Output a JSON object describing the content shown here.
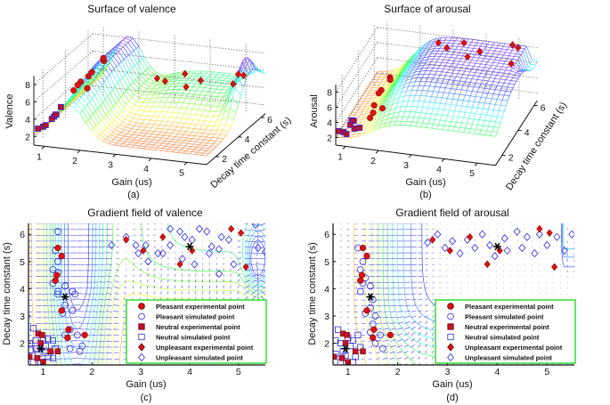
{
  "chart_data": [
    {
      "id": "a",
      "type": "surface3d",
      "title": "Surface of valence",
      "caption": "(a)",
      "xlabel": "Gain (us)",
      "ylabel": "Decay time constant (s)",
      "zlabel": "Valence",
      "xticks": [
        "1",
        "2",
        "3",
        "4",
        "5"
      ],
      "yticks": [
        "2",
        "4",
        "6"
      ],
      "zticks": [
        "2",
        "4",
        "6",
        "8"
      ],
      "xlim": [
        0.7,
        5.55
      ],
      "ylim": [
        1.2,
        6.4
      ],
      "zlim": [
        1,
        9
      ]
    },
    {
      "id": "b",
      "type": "surface3d",
      "title": "Surface of arousal",
      "caption": "(b)",
      "xlabel": "Gain (us)",
      "ylabel": "Decay time constant (s)",
      "zlabel": "Arousal",
      "xticks": [
        "1",
        "2",
        "3",
        "4",
        "5"
      ],
      "yticks": [
        "2",
        "4",
        "6"
      ],
      "zticks": [
        "2",
        "4",
        "6",
        "8"
      ],
      "xlim": [
        0.7,
        5.55
      ],
      "ylim": [
        1.2,
        6.4
      ],
      "zlim": [
        1,
        9
      ]
    },
    {
      "id": "c",
      "type": "scatter",
      "title": "Gradient field of valence",
      "caption": "(c)",
      "xlabel": "Gain (us)",
      "ylabel": "Decay time constant (s)",
      "xticks": [
        "1",
        "2",
        "3",
        "4",
        "5"
      ],
      "yticks": [
        "2",
        "3",
        "4",
        "5",
        "6"
      ],
      "xlim": [
        0.7,
        5.55
      ],
      "ylim": [
        1.2,
        6.4
      ],
      "legend_position": "bottom-right"
    },
    {
      "id": "d",
      "type": "scatter",
      "title": "Gradient field of arousal",
      "caption": "(d)",
      "xlabel": "Gain (us)",
      "ylabel": "Decay time constant (s)",
      "xticks": [
        "1",
        "2",
        "3",
        "4",
        "5"
      ],
      "yticks": [
        "2",
        "3",
        "4",
        "5",
        "6"
      ],
      "xlim": [
        0.7,
        5.55
      ],
      "ylim": [
        1.2,
        6.4
      ],
      "legend_position": "bottom-right"
    }
  ],
  "legend": [
    {
      "label": "Pleasant experimental point",
      "marker": "circle",
      "filled": true
    },
    {
      "label": "Pleasant simulated point",
      "marker": "circle",
      "filled": false
    },
    {
      "label": "Neutral experimental point",
      "marker": "square",
      "filled": true
    },
    {
      "label": "Neutral simulated point",
      "marker": "square",
      "filled": false
    },
    {
      "label": "Unpleasant experimental point",
      "marker": "diamond",
      "filled": true
    },
    {
      "label": "Unpleasant simulated point",
      "marker": "diamond",
      "filled": false
    }
  ],
  "points": {
    "pleasant_exp": [
      [
        1.3,
        5.5
      ],
      [
        1.38,
        5.2
      ],
      [
        1.28,
        4.5
      ],
      [
        1.25,
        4.3
      ],
      [
        1.38,
        3.2
      ],
      [
        1.52,
        2.5
      ],
      [
        1.5,
        2.2
      ],
      [
        1.85,
        2.3
      ]
    ],
    "neutral_exp": [
      [
        0.9,
        2.35
      ],
      [
        0.98,
        2.3
      ],
      [
        0.95,
        2.0
      ],
      [
        1.15,
        1.7
      ],
      [
        1.3,
        1.7
      ],
      [
        0.72,
        1.5
      ],
      [
        0.88,
        1.45
      ],
      [
        1.0,
        1.3
      ]
    ],
    "unpleasant_exp": [
      [
        2.7,
        5.8
      ],
      [
        3.05,
        5.4
      ],
      [
        3.45,
        5.9
      ],
      [
        3.8,
        4.9
      ],
      [
        4.05,
        5.4
      ],
      [
        4.85,
        6.2
      ],
      [
        5.05,
        6.05
      ],
      [
        5.15,
        4.8
      ]
    ],
    "centroids": [
      [
        0.95,
        1.8
      ],
      [
        1.45,
        3.7
      ],
      [
        4.0,
        5.55
      ]
    ],
    "pleasant_sim_c": [
      [
        1.3,
        6.1
      ],
      [
        1.25,
        5.4
      ],
      [
        1.3,
        5.0
      ],
      [
        1.2,
        4.7
      ],
      [
        1.3,
        4.6
      ],
      [
        1.45,
        4.1
      ],
      [
        1.3,
        3.9
      ],
      [
        1.3,
        3.8
      ],
      [
        1.6,
        3.9
      ],
      [
        1.65,
        3.8
      ],
      [
        1.45,
        3.4
      ],
      [
        1.4,
        3.1
      ],
      [
        1.6,
        3.2
      ],
      [
        1.55,
        2.5
      ],
      [
        1.45,
        2.3
      ],
      [
        1.7,
        2.3
      ],
      [
        1.55,
        1.8
      ],
      [
        1.8,
        1.9
      ],
      [
        1.75,
        1.7
      ],
      [
        1.2,
        4.2
      ]
    ],
    "neutral_sim_c": [
      [
        0.72,
        2.0
      ],
      [
        0.8,
        2.55
      ],
      [
        0.85,
        2.1
      ],
      [
        0.85,
        1.8
      ],
      [
        0.9,
        1.6
      ],
      [
        1.0,
        2.1
      ],
      [
        1.05,
        1.9
      ],
      [
        1.1,
        2.15
      ],
      [
        1.1,
        1.5
      ],
      [
        1.05,
        1.65
      ],
      [
        1.2,
        2.1
      ],
      [
        0.95,
        1.3
      ],
      [
        0.8,
        1.3
      ],
      [
        1.2,
        1.45
      ],
      [
        0.75,
        1.75
      ],
      [
        1.25,
        1.8
      ]
    ],
    "unpleasant_sim_c": [
      [
        2.4,
        5.6
      ],
      [
        2.7,
        5.9
      ],
      [
        2.9,
        5.6
      ],
      [
        2.95,
        5.3
      ],
      [
        3.1,
        5.6
      ],
      [
        3.15,
        5.0
      ],
      [
        3.35,
        5.3
      ],
      [
        3.45,
        5.3
      ],
      [
        3.6,
        5.6
      ],
      [
        3.6,
        6.2
      ],
      [
        3.8,
        6.1
      ],
      [
        3.85,
        5.1
      ],
      [
        3.9,
        5.9
      ],
      [
        4.05,
        5.8
      ],
      [
        4.1,
        4.9
      ],
      [
        4.2,
        6.2
      ],
      [
        4.35,
        6.1
      ],
      [
        4.4,
        5.3
      ],
      [
        4.45,
        5.55
      ],
      [
        4.6,
        5.45
      ],
      [
        4.6,
        4.55
      ],
      [
        4.65,
        5.9
      ],
      [
        4.8,
        5.8
      ],
      [
        4.9,
        4.9
      ],
      [
        5.35,
        6.35
      ],
      [
        5.4,
        5.5
      ],
      [
        5.55,
        5.35
      ]
    ],
    "pleasant_sim_d": [
      [
        1.2,
        5.5
      ],
      [
        1.3,
        5.0
      ],
      [
        1.25,
        4.7
      ],
      [
        1.35,
        4.4
      ],
      [
        1.3,
        4.2
      ],
      [
        1.45,
        4.1
      ],
      [
        1.25,
        3.9
      ],
      [
        1.5,
        3.6
      ],
      [
        1.45,
        3.3
      ],
      [
        1.35,
        3.1
      ],
      [
        1.55,
        3.0
      ],
      [
        1.5,
        2.7
      ],
      [
        1.45,
        2.4
      ],
      [
        1.65,
        2.3
      ],
      [
        1.55,
        2.0
      ],
      [
        1.7,
        1.8
      ]
    ],
    "neutral_sim_d": [
      [
        0.75,
        2.1
      ],
      [
        0.8,
        2.5
      ],
      [
        0.85,
        2.0
      ],
      [
        0.9,
        1.7
      ],
      [
        0.95,
        1.55
      ],
      [
        1.0,
        2.2
      ],
      [
        1.05,
        1.9
      ],
      [
        1.1,
        2.1
      ],
      [
        1.15,
        1.5
      ],
      [
        1.1,
        1.3
      ],
      [
        0.85,
        1.3
      ],
      [
        0.75,
        1.6
      ],
      [
        1.25,
        1.85
      ],
      [
        1.2,
        2.3
      ]
    ],
    "unpleasant_sim_d": [
      [
        2.6,
        5.7
      ],
      [
        2.8,
        6.0
      ],
      [
        2.95,
        5.5
      ],
      [
        3.1,
        5.75
      ],
      [
        3.25,
        5.3
      ],
      [
        3.4,
        5.8
      ],
      [
        3.55,
        5.5
      ],
      [
        3.7,
        6.0
      ],
      [
        3.85,
        5.6
      ],
      [
        3.95,
        5.2
      ],
      [
        4.15,
        5.85
      ],
      [
        4.2,
        5.4
      ],
      [
        4.4,
        6.1
      ],
      [
        4.5,
        5.5
      ],
      [
        4.6,
        5.9
      ],
      [
        4.75,
        5.3
      ],
      [
        4.85,
        6.0
      ],
      [
        5.0,
        5.6
      ],
      [
        5.2,
        5.9
      ],
      [
        5.35,
        5.4
      ],
      [
        5.5,
        6.0
      ]
    ]
  }
}
